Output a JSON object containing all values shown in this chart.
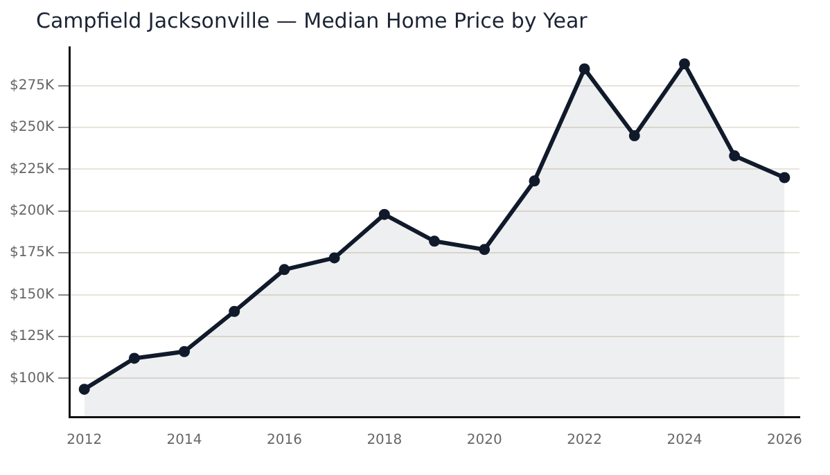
{
  "chart_data": {
    "type": "area",
    "title": "Campfield Jacksonville — Median Home Price by Year",
    "x": [
      2012,
      2013,
      2014,
      2015,
      2016,
      2017,
      2018,
      2019,
      2020,
      2021,
      2022,
      2023,
      2024,
      2025,
      2026
    ],
    "series": [
      {
        "color": "#111a2b",
        "values": [
          93500,
          112000,
          116000,
          140000,
          165000,
          172000,
          198000,
          182000,
          177000,
          218000,
          285000,
          245000,
          288000,
          233000,
          220000
        ]
      }
    ],
    "xlim": [
      2011.7,
      2026.3
    ],
    "xticks": [
      2012,
      2014,
      2016,
      2018,
      2020,
      2022,
      2024,
      2026
    ],
    "ylim": [
      77000,
      298000
    ],
    "yticks": [
      {
        "value": 100000,
        "label": "$100K"
      },
      {
        "value": 125000,
        "label": "$125K"
      },
      {
        "value": 150000,
        "label": "$150K"
      },
      {
        "value": 175000,
        "label": "$175K"
      },
      {
        "value": 200000,
        "label": "$200K"
      },
      {
        "value": 225000,
        "label": "$225K"
      },
      {
        "value": 250000,
        "label": "$250K"
      },
      {
        "value": 275000,
        "label": "$275K"
      }
    ],
    "grid": "y",
    "legend": false,
    "marker": "circle",
    "line_style": "solid"
  }
}
